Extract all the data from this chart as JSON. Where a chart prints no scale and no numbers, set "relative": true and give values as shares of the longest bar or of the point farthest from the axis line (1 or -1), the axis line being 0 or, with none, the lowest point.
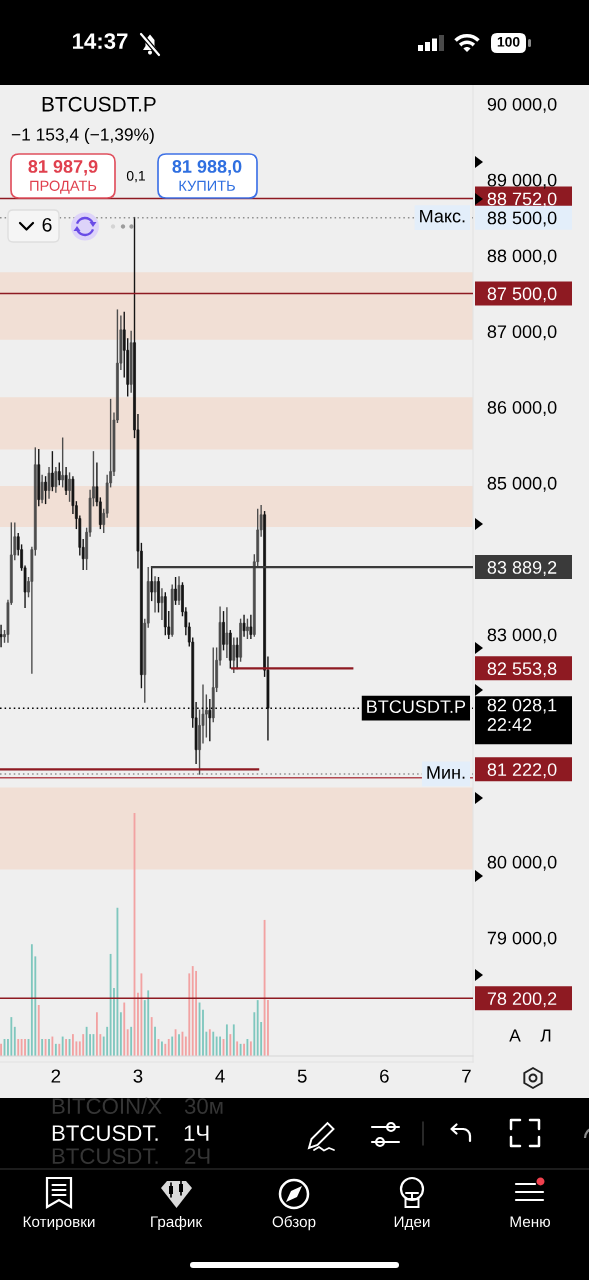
{
  "chart_data": [
    {
      "type": "candlestick",
      "title": "BTCUSDT.P",
      "subtitle": "−1 153,4 (−1,39%)",
      "x": [
        1.333,
        1.375,
        1.417,
        1.458,
        1.5,
        1.542,
        1.583,
        1.625,
        1.667,
        1.708,
        1.75,
        1.792,
        1.833,
        1.875,
        1.917,
        1.958,
        2,
        2.042,
        2.083,
        2.125,
        2.167,
        2.208,
        2.25,
        2.292,
        2.333,
        2.375,
        2.417,
        2.458,
        2.5,
        2.542,
        2.583,
        2.625,
        2.667,
        2.708,
        2.75,
        2.792,
        2.833,
        2.875,
        2.917,
        2.958,
        3,
        3.042,
        3.083,
        3.125,
        3.167,
        3.208,
        3.25,
        3.292,
        3.333,
        3.375,
        3.417,
        3.458,
        3.5,
        3.542,
        3.583,
        3.625,
        3.667,
        3.708,
        3.75,
        3.792,
        3.833,
        3.875,
        3.917,
        3.958,
        4,
        4.042,
        4.083,
        4.125,
        4.167,
        4.208,
        4.25,
        4.292,
        4.333,
        4.375,
        4.417,
        4.458,
        4.5,
        4.542,
        4.583
      ],
      "ohlc": [
        [
          83000,
          83120,
          82840,
          82970
        ],
        [
          82970,
          83050,
          82900,
          83000
        ],
        [
          83000,
          83450,
          82900,
          83420
        ],
        [
          83420,
          84470,
          83400,
          84050
        ],
        [
          84050,
          84470,
          83990,
          84290
        ],
        [
          84290,
          84330,
          84050,
          84120
        ],
        [
          84120,
          84180,
          83850,
          83880
        ],
        [
          83880,
          83900,
          83360,
          83560
        ],
        [
          83560,
          83750,
          83500,
          83700
        ],
        [
          83700,
          84150,
          82490,
          84120
        ],
        [
          84120,
          85460,
          84050,
          85240
        ],
        [
          85240,
          85440,
          84700,
          84780
        ],
        [
          84780,
          85100,
          84740,
          85010
        ],
        [
          85010,
          85080,
          84730,
          84900
        ],
        [
          84900,
          85200,
          84800,
          85130
        ],
        [
          85130,
          85410,
          84900,
          84950
        ],
        [
          84950,
          85200,
          84880,
          85150
        ],
        [
          85150,
          85260,
          84980,
          85040
        ],
        [
          85040,
          85590,
          84950,
          85100
        ],
        [
          85100,
          85200,
          84850,
          84900
        ],
        [
          84900,
          85130,
          84760,
          85050
        ],
        [
          85050,
          85080,
          84600,
          84700
        ],
        [
          84700,
          84750,
          84400,
          84530
        ],
        [
          84530,
          84560,
          84050,
          84150
        ],
        [
          84150,
          84250,
          83860,
          84000
        ],
        [
          84000,
          84400,
          83860,
          84350
        ],
        [
          84350,
          84900,
          84300,
          84800
        ],
        [
          84800,
          85410,
          84700,
          84950
        ],
        [
          84950,
          85260,
          84700,
          84750
        ],
        [
          84750,
          84800,
          84400,
          84450
        ],
        [
          84450,
          84650,
          84350,
          84600
        ],
        [
          84600,
          85100,
          84550,
          85000
        ],
        [
          85000,
          86100,
          84950,
          85150
        ],
        [
          85150,
          85920,
          85100,
          85830
        ],
        [
          85830,
          87280,
          85800,
          86580
        ],
        [
          86580,
          87200,
          86500,
          87020
        ],
        [
          87020,
          87250,
          86400,
          86750
        ],
        [
          86750,
          86900,
          86150,
          86300
        ],
        [
          86300,
          87000,
          86200,
          86850
        ],
        [
          86850,
          88500,
          85600,
          85700
        ],
        [
          85700,
          85900,
          83880,
          84100
        ],
        [
          84100,
          84200,
          82300,
          82470
        ],
        [
          82470,
          83200,
          82110,
          83150
        ],
        [
          83150,
          83880,
          83100,
          83700
        ],
        [
          83700,
          83890,
          83450,
          83560
        ],
        [
          83560,
          83760,
          83300,
          83700
        ],
        [
          83700,
          83750,
          83300,
          83420
        ],
        [
          83420,
          83600,
          83200,
          83500
        ],
        [
          83500,
          83550,
          83000,
          83100
        ],
        [
          83100,
          83300,
          82950,
          83000
        ],
        [
          83000,
          83650,
          82980,
          83600
        ],
        [
          83600,
          83750,
          83400,
          83450
        ],
        [
          83450,
          83760,
          83400,
          83650
        ],
        [
          83650,
          83680,
          83250,
          83300
        ],
        [
          83300,
          83350,
          83000,
          83100
        ],
        [
          83100,
          83150,
          82850,
          82900
        ],
        [
          82900,
          82950,
          81780,
          81900
        ],
        [
          81900,
          82100,
          81300,
          81480
        ],
        [
          81480,
          82000,
          81160,
          81800
        ],
        [
          81800,
          82330,
          81570,
          81950
        ],
        [
          81950,
          82200,
          81650,
          82000
        ],
        [
          82000,
          82140,
          81600,
          81900
        ],
        [
          81900,
          82820,
          81850,
          82300
        ],
        [
          82300,
          82820,
          82250,
          82660
        ],
        [
          82660,
          83360,
          82600,
          83160
        ],
        [
          83160,
          83300,
          82800,
          82870
        ],
        [
          82870,
          83350,
          82700,
          83020
        ],
        [
          83020,
          83050,
          82560,
          82660
        ],
        [
          82660,
          82950,
          82500,
          82860
        ],
        [
          82860,
          82950,
          82550,
          82700
        ],
        [
          82700,
          83200,
          82650,
          83150
        ],
        [
          83150,
          83250,
          82980,
          83050
        ],
        [
          83050,
          83200,
          82950,
          83100
        ],
        [
          83100,
          83250,
          82950,
          83000
        ],
        [
          83000,
          84050,
          82980,
          83960
        ],
        [
          83960,
          84650,
          83900,
          84380
        ],
        [
          84380,
          84700,
          84300,
          84580
        ],
        [
          84580,
          84620,
          82450,
          82530
        ],
        [
          82530,
          82700,
          81610,
          82028.1
        ]
      ],
      "colors": [
        "#151515",
        "#4d4d4d",
        "#4d4d4d",
        "#4d4d4d",
        "#4d4d4d",
        "#151515",
        "#151515",
        "#151515",
        "#4d4d4d",
        "#4d4d4d",
        "#4d4d4d",
        "#151515",
        "#4d4d4d",
        "#151515",
        "#4d4d4d",
        "#151515",
        "#4d4d4d",
        "#151515",
        "#4d4d4d",
        "#151515",
        "#4d4d4d",
        "#151515",
        "#151515",
        "#151515",
        "#151515",
        "#4d4d4d",
        "#4d4d4d",
        "#4d4d4d",
        "#151515",
        "#151515",
        "#4d4d4d",
        "#4d4d4d",
        "#4d4d4d",
        "#4d4d4d",
        "#4d4d4d",
        "#4d4d4d",
        "#151515",
        "#151515",
        "#4d4d4d",
        "#151515",
        "#151515",
        "#151515",
        "#4d4d4d",
        "#4d4d4d",
        "#151515",
        "#4d4d4d",
        "#151515",
        "#4d4d4d",
        "#151515",
        "#151515",
        "#4d4d4d",
        "#151515",
        "#4d4d4d",
        "#151515",
        "#151515",
        "#151515",
        "#151515",
        "#151515",
        "#4d4d4d",
        "#4d4d4d",
        "#4d4d4d",
        "#151515",
        "#4d4d4d",
        "#4d4d4d",
        "#4d4d4d",
        "#151515",
        "#4d4d4d",
        "#151515",
        "#4d4d4d",
        "#151515",
        "#4d4d4d",
        "#151515",
        "#4d4d4d",
        "#151515",
        "#4d4d4d",
        "#4d4d4d",
        "#4d4d4d",
        "#151515",
        "#151515"
      ],
      "xlim": [
        1.32,
        7.08
      ],
      "xticks": [
        2,
        3,
        4,
        5,
        6,
        7
      ],
      "ylim": [
        77360,
        90250
      ],
      "yticks": [
        {
          "value": 90000,
          "label": "90 000,0"
        },
        {
          "value": 89000,
          "label": "89 000,0"
        },
        {
          "value": 88752.0,
          "label": "88 752,0"
        },
        {
          "value": 88500,
          "label": "88 500,0"
        },
        {
          "value": 88000,
          "label": "88 000,0"
        },
        {
          "value": 87500.0,
          "label": "87 500,0"
        },
        {
          "value": 87000,
          "label": "87 000,0"
        },
        {
          "value": 86000,
          "label": "86 000,0"
        },
        {
          "value": 85000,
          "label": "85 000,0"
        },
        {
          "value": 83889.2,
          "label": "83 889,2"
        },
        {
          "value": 83000,
          "label": "83 000,0"
        },
        {
          "value": 82553.8,
          "label": "82 553,8"
        },
        {
          "value": 82028.1,
          "label": "82 028,1\n22:42"
        },
        {
          "value": 81222.0,
          "label": "81 222,0"
        },
        {
          "value": 80000,
          "label": "80 000,0"
        },
        {
          "value": 79000,
          "label": "79 000,0"
        },
        {
          "value": 78200.2,
          "label": "78 200,2"
        }
      ],
      "bands": [
        {
          "axis": "y",
          "from": 86890,
          "to": 87780,
          "color": "#f1dfd5"
        },
        {
          "axis": "y",
          "from": 85440,
          "to": 86130,
          "color": "#f1dfd5"
        },
        {
          "axis": "y",
          "from": 84420,
          "to": 84960,
          "color": "#f1dfd5"
        },
        {
          "axis": "y",
          "from": 79900,
          "to": 80980,
          "color": "#f1dfd5"
        }
      ],
      "series": [
        {
          "type": "line",
          "x": [
            3.171,
            7.08
          ],
          "values": [
            83889.2,
            83889.2
          ],
          "color": "#3a3a3a"
        },
        {
          "type": "line",
          "x": [
            4.146,
            5.61
          ],
          "values": [
            82553.8,
            82553.8
          ],
          "color": "#8e1a22"
        },
        {
          "type": "line",
          "x": [
            1.32,
            4.463
          ],
          "values": [
            81222.0,
            81222.0
          ],
          "color": "#8e1a22"
        }
      ],
      "ref_lines": [
        {
          "axis": "y",
          "value": 88752.0,
          "color": "#8e1a22"
        },
        {
          "axis": "y",
          "value": 88500,
          "label": "Макс.",
          "color": "#8f8f8f",
          "line_style": "dotted"
        },
        {
          "axis": "y",
          "value": 87500.0,
          "color": "#8e1a22"
        },
        {
          "axis": "y",
          "value": 82028.1,
          "label": "BTCUSDT.P",
          "color": "#000000",
          "line_style": "dotted"
        },
        {
          "axis": "y",
          "value": 81160,
          "label": "Мин.",
          "color": "#8f8f8f",
          "line_style": "dotted"
        },
        {
          "axis": "y",
          "value": 81110,
          "color": "#b24a52"
        },
        {
          "axis": "y",
          "value": 78200.2,
          "color": "#8e1a22"
        }
      ],
      "annotations": [
        "81 987,9",
        "ПРОДАТЬ",
        "0,1",
        "81 988,0",
        "КУПИТЬ",
        "6",
        "А",
        "Л",
        "BTCUSDT.",
        "1Ч",
        "Котировки",
        "График",
        "Обзор",
        "Идеи",
        "Меню",
        "14:37",
        "100",
        "BITCOIN/X",
        "30м",
        "BTCUSDT.",
        "2Ч"
      ]
    },
    {
      "type": "bar",
      "x": [
        1.333,
        1.375,
        1.417,
        1.458,
        1.5,
        1.542,
        1.583,
        1.625,
        1.667,
        1.708,
        1.75,
        1.792,
        1.833,
        1.875,
        1.917,
        1.958,
        2,
        2.042,
        2.083,
        2.125,
        2.167,
        2.208,
        2.25,
        2.292,
        2.333,
        2.375,
        2.417,
        2.458,
        2.5,
        2.542,
        2.583,
        2.625,
        2.667,
        2.708,
        2.75,
        2.792,
        2.833,
        2.875,
        2.917,
        2.958,
        3,
        3.042,
        3.083,
        3.125,
        3.167,
        3.208,
        3.25,
        3.292,
        3.333,
        3.375,
        3.417,
        3.458,
        3.5,
        3.542,
        3.583,
        3.625,
        3.667,
        3.708,
        3.75,
        3.792,
        3.833,
        3.875,
        3.917,
        3.958,
        4,
        4.042,
        4.083,
        4.125,
        4.167,
        4.208,
        4.25,
        4.292,
        4.333,
        4.375,
        4.417,
        4.458,
        4.5,
        4.542,
        4.583
      ],
      "values": [
        0.05,
        0.07,
        0.07,
        0.16,
        0.12,
        0.07,
        0.07,
        0.07,
        0.07,
        0.46,
        0.41,
        0.21,
        0.07,
        0.07,
        0.07,
        0.08,
        0.05,
        0.05,
        0.08,
        0.07,
        0.07,
        0.09,
        0.06,
        0.06,
        0.09,
        0.12,
        0.09,
        0.09,
        0.18,
        0.09,
        0.08,
        0.12,
        0.42,
        0.28,
        0.61,
        0.18,
        0.22,
        0.11,
        0.12,
        1,
        0.26,
        0.34,
        0.23,
        0.27,
        0.16,
        0.12,
        0.07,
        0.06,
        0.05,
        0.07,
        0.08,
        0.11,
        0.09,
        0.1,
        0.08,
        0.34,
        0.37,
        0.35,
        0.22,
        0.19,
        0.1,
        0.11,
        0.1,
        0.08,
        0.08,
        0.07,
        0.13,
        0.09,
        0.13,
        0.06,
        0.05,
        0.05,
        0.07,
        0.06,
        0.18,
        0.23,
        0.14,
        0.56,
        0.23
      ],
      "colors": [
        "#f2a2a2",
        "#7fc7be",
        "#7fc7be",
        "#7fc7be",
        "#7fc7be",
        "#f2a2a2",
        "#f2a2a2",
        "#f2a2a2",
        "#7fc7be",
        "#7fc7be",
        "#7fc7be",
        "#f2a2a2",
        "#7fc7be",
        "#f2a2a2",
        "#7fc7be",
        "#f2a2a2",
        "#7fc7be",
        "#f2a2a2",
        "#7fc7be",
        "#f2a2a2",
        "#7fc7be",
        "#f2a2a2",
        "#f2a2a2",
        "#f2a2a2",
        "#f2a2a2",
        "#7fc7be",
        "#7fc7be",
        "#7fc7be",
        "#f2a2a2",
        "#f2a2a2",
        "#7fc7be",
        "#7fc7be",
        "#7fc7be",
        "#7fc7be",
        "#7fc7be",
        "#7fc7be",
        "#f2a2a2",
        "#f2a2a2",
        "#7fc7be",
        "#f2a2a2",
        "#f2a2a2",
        "#f2a2a2",
        "#7fc7be",
        "#7fc7be",
        "#f2a2a2",
        "#7fc7be",
        "#f2a2a2",
        "#7fc7be",
        "#f2a2a2",
        "#f2a2a2",
        "#7fc7be",
        "#f2a2a2",
        "#7fc7be",
        "#f2a2a2",
        "#f2a2a2",
        "#f2a2a2",
        "#f2a2a2",
        "#f2a2a2",
        "#7fc7be",
        "#7fc7be",
        "#7fc7be",
        "#f2a2a2",
        "#7fc7be",
        "#7fc7be",
        "#7fc7be",
        "#f2a2a2",
        "#7fc7be",
        "#f2a2a2",
        "#7fc7be",
        "#f2a2a2",
        "#7fc7be",
        "#f2a2a2",
        "#7fc7be",
        "#f2a2a2",
        "#7fc7be",
        "#7fc7be",
        "#7fc7be",
        "#f2a2a2",
        "#f2a2a2"
      ],
      "relative": true,
      "xlim": [
        1.32,
        7.08
      ],
      "tick_labels": false
    }
  ]
}
